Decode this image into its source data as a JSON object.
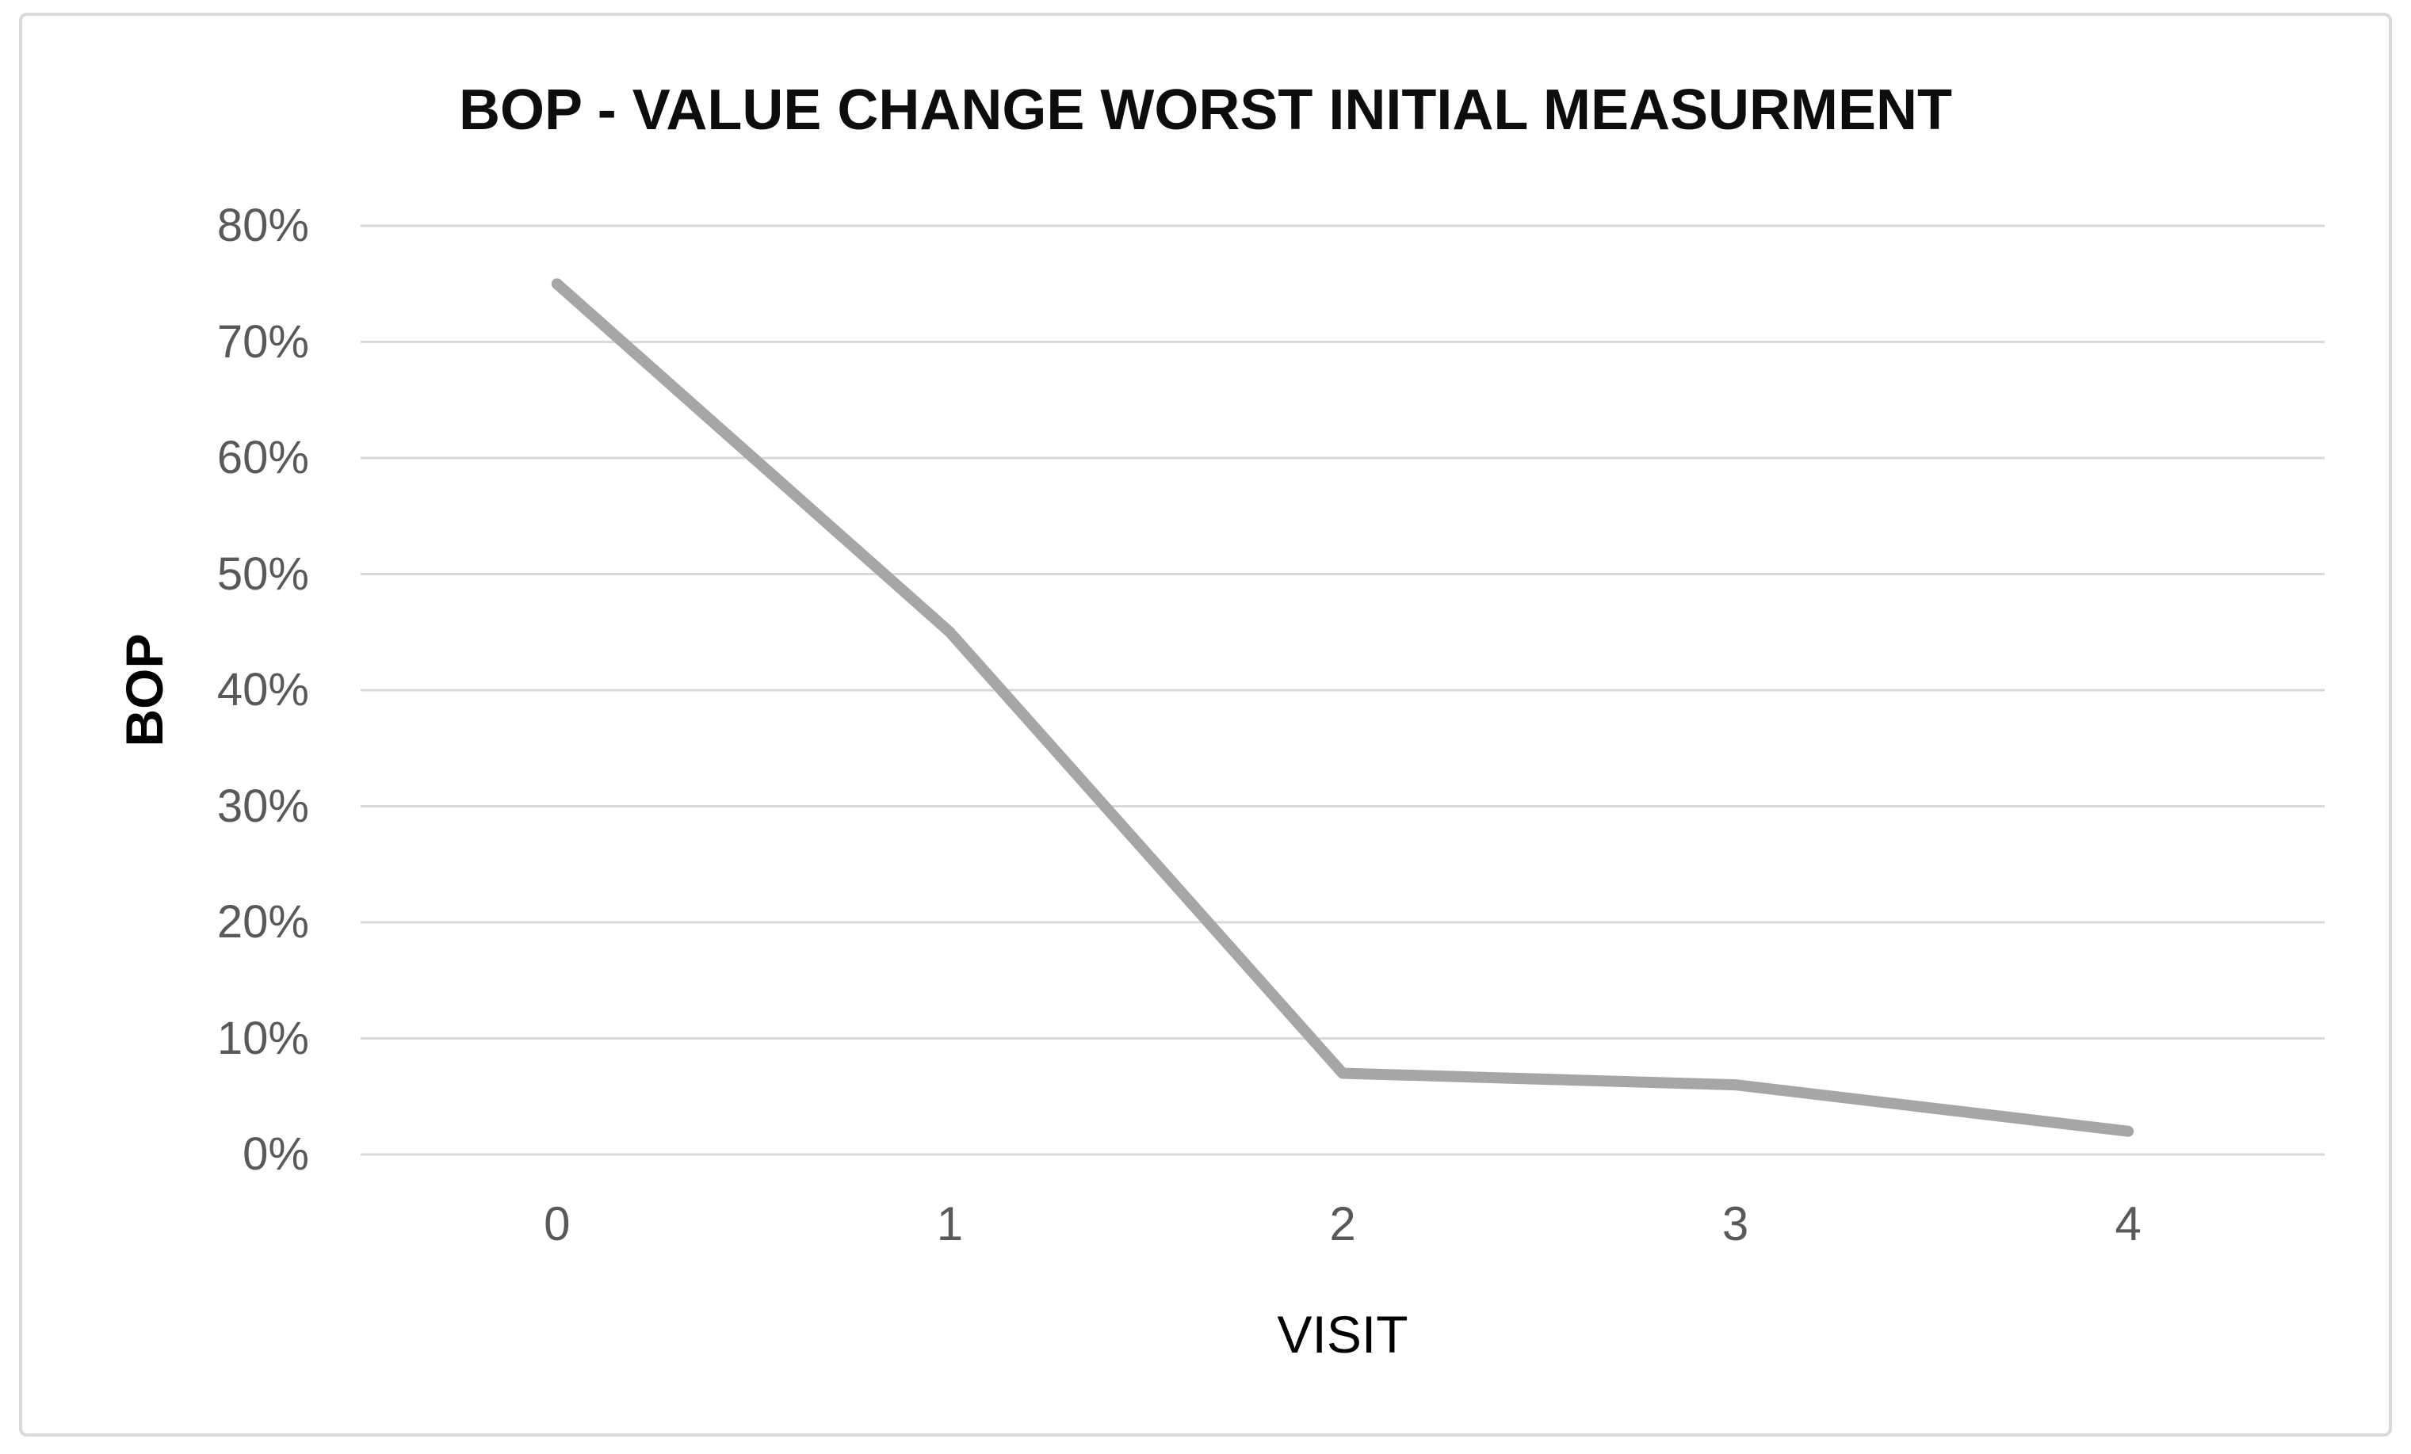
{
  "chart_data": {
    "type": "line",
    "title": "BOP - VALUE CHANGE WORST INITIAL MEASURMENT",
    "xlabel": "VISIT",
    "ylabel": "BOP",
    "categories": [
      "0",
      "1",
      "2",
      "3",
      "4"
    ],
    "series": [
      {
        "name": "BOP",
        "values": [
          75,
          45,
          7,
          6,
          2
        ]
      }
    ],
    "values_unit": "%",
    "ylim": [
      0,
      80
    ],
    "ytick_step": 10,
    "yticks": [
      "0%",
      "10%",
      "20%",
      "30%",
      "40%",
      "50%",
      "60%",
      "70%",
      "80%"
    ],
    "grid": "horizontal",
    "legend_position": "none",
    "colors": {
      "series_line": "#A6A6A6",
      "gridline": "#D9D9D9",
      "tick_label": "#595959",
      "title_text": "#0D0D0D",
      "axis_title_text": "#000000",
      "frame_border": "#D9D9D9",
      "background": "#FFFFFF"
    }
  }
}
